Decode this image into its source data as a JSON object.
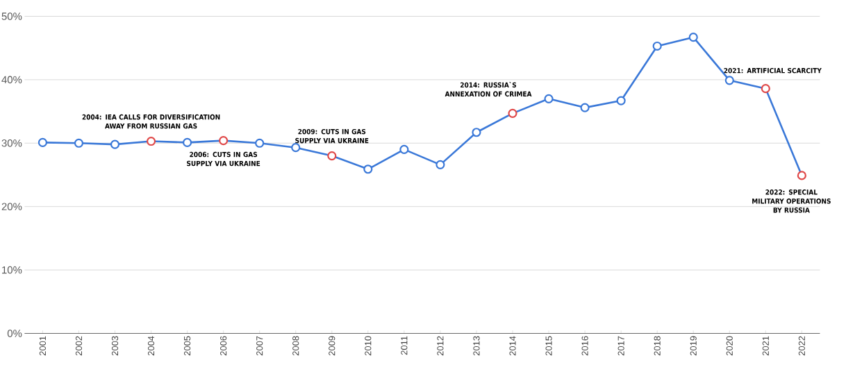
{
  "chart_data": {
    "type": "line",
    "categories": [
      "2001",
      "2002",
      "2003",
      "2004",
      "2005",
      "2006",
      "2007",
      "2008",
      "2009",
      "2010",
      "2011",
      "2012",
      "2013",
      "2014",
      "2015",
      "2016",
      "2017",
      "2018",
      "2019",
      "2020",
      "2021",
      "2022"
    ],
    "series": [
      {
        "color": "#3a78d8",
        "colors": [
          "#3a78d8",
          "#3a78d8",
          "#3a78d8",
          "#e04848",
          "#3a78d8",
          "#e04848",
          "#3a78d8",
          "#3a78d8",
          "#e04848",
          "#3a78d8",
          "#3a78d8",
          "#3a78d8",
          "#3a78d8",
          "#e04848",
          "#3a78d8",
          "#3a78d8",
          "#3a78d8",
          "#3a78d8",
          "#3a78d8",
          "#3a78d8",
          "#e04848",
          "#e04848"
        ],
        "values": [
          30.1,
          30.0,
          29.8,
          30.3,
          30.1,
          30.4,
          30.0,
          29.3,
          28.0,
          25.9,
          29.0,
          26.6,
          31.7,
          34.7,
          37.0,
          35.6,
          36.7,
          45.3,
          46.7,
          39.9,
          38.6,
          24.9
        ]
      }
    ],
    "ylim": [
      0,
      50
    ],
    "yticks": [
      {
        "value": 0,
        "label": "0%"
      },
      {
        "value": 10,
        "label": "10%"
      },
      {
        "value": 20,
        "label": "20%"
      },
      {
        "value": 30,
        "label": "30%"
      },
      {
        "value": 40,
        "label": "40%"
      },
      {
        "value": 50,
        "label": "50%"
      }
    ],
    "grid": "y",
    "marker": "circle",
    "line_style": "solid",
    "annotations": [
      {
        "text": "2004: IEA CALLS FOR DIVERSIFICATION AWAY FROM RUSSIAN GAS",
        "x": "2004",
        "y": 30.3
      },
      {
        "text": "2006: CUTS IN GAS SUPPLY VIA UKRAINE",
        "x": "2006",
        "y": 30.4
      },
      {
        "text": "2009: CUTS IN GAS SUPPLY VIA UKRAINE",
        "x": "2009",
        "y": 28.0
      },
      {
        "text": "2014: RUSSIA`S ANNEXATION OF CRIMEA",
        "x": "2014",
        "y": 34.7
      },
      {
        "text": "2021: ARTIFICIAL SCARCITY",
        "x": "2021",
        "y": 38.6
      },
      {
        "text": "2022: SPECIAL MILITARY OPERATIONS BY RUSSIA",
        "x": "2022",
        "y": 24.9
      }
    ]
  }
}
